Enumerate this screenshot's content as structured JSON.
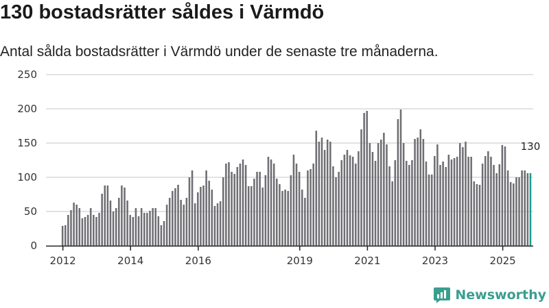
{
  "header": {
    "title": "130 bostadsrätter såldes i Värmdö",
    "subtitle": "Antal sålda bostadsrätter i Värmdö under de senaste tre månaderna."
  },
  "brand": {
    "name": "Newsworthy"
  },
  "colors": {
    "bar": "#6e6e73",
    "highlight": "#1a9c8f",
    "grid": "#d9d9d9",
    "axis": "#222222",
    "brand": "#3a9e8f"
  },
  "chart_data": {
    "type": "bar",
    "title": "130 bostadsrätter såldes i Värmdö",
    "xlabel": "",
    "ylabel": "",
    "ylim": [
      0,
      250
    ],
    "yticks": [
      0,
      50,
      100,
      150,
      200,
      250
    ],
    "xlim": [
      2011.5,
      2025.9
    ],
    "xticks": [
      2012,
      2014,
      2016,
      2019,
      2021,
      2023,
      2025
    ],
    "grid": true,
    "highlight_label": "130",
    "series": [
      {
        "name": "Sålda bostadsrätter",
        "start": 2011.99,
        "step": 0.0833,
        "values": [
          29,
          30,
          45,
          52,
          63,
          60,
          55,
          40,
          42,
          45,
          55,
          45,
          42,
          48,
          76,
          88,
          88,
          66,
          50,
          55,
          70,
          88,
          85,
          66,
          45,
          42,
          55,
          43,
          55,
          48,
          48,
          51,
          55,
          55,
          43,
          30,
          36,
          60,
          70,
          80,
          84,
          89,
          67,
          60,
          70,
          100,
          110,
          62,
          78,
          86,
          88,
          110,
          95,
          82,
          58,
          62,
          65,
          100,
          120,
          122,
          108,
          105,
          115,
          120,
          126,
          118,
          87,
          87,
          98,
          108,
          108,
          85,
          103,
          130,
          126,
          120,
          98,
          90,
          80,
          82,
          80,
          103,
          133,
          120,
          108,
          82,
          70,
          110,
          112,
          120,
          168,
          152,
          158,
          140,
          155,
          152,
          116,
          100,
          108,
          125,
          133,
          140,
          132,
          130,
          120,
          138,
          170,
          194,
          197,
          150,
          137,
          124,
          150,
          155,
          165,
          148,
          116,
          94,
          125,
          185,
          199,
          150,
          124,
          118,
          125,
          156,
          158,
          170,
          156,
          123,
          104,
          104,
          131,
          148,
          118,
          123,
          115,
          133,
          126,
          128,
          130,
          150,
          144,
          152,
          130,
          130,
          94,
          90,
          89,
          120,
          131,
          138,
          130,
          118,
          106,
          119,
          147,
          145,
          110,
          93,
          91,
          100,
          100,
          110,
          110,
          106,
          106
        ],
        "highlight_value": 130
      }
    ]
  }
}
